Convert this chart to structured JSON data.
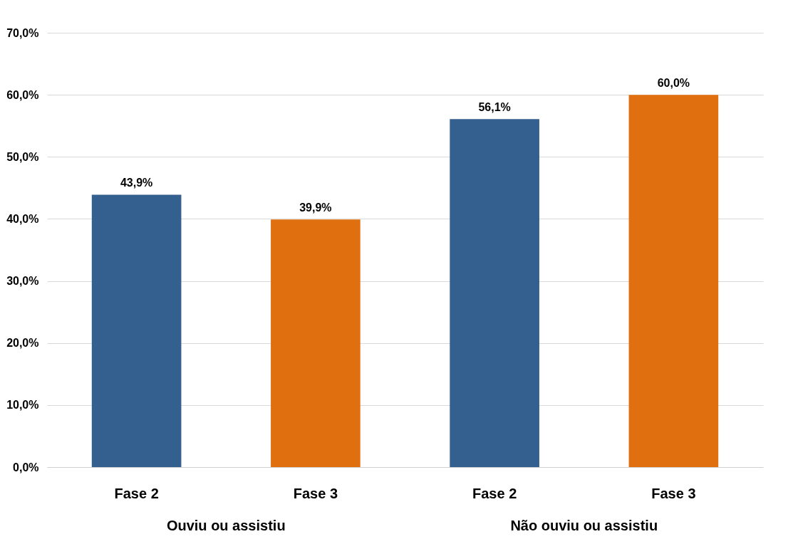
{
  "chart_data": {
    "type": "bar",
    "categories": [
      "Ouviu ou assistiu",
      "Não ouviu ou assistiu"
    ],
    "series": [
      {
        "name": "Fase 2",
        "color": "#34608f",
        "values": [
          43.9,
          56.1
        ],
        "value_labels": [
          "43,9%",
          "56,1%"
        ]
      },
      {
        "name": "Fase 3",
        "color": "#e0700f",
        "values": [
          39.9,
          60.0
        ],
        "value_labels": [
          "39,9%",
          "60,0%"
        ]
      }
    ],
    "ylim": [
      0,
      70
    ],
    "yticks": [
      {
        "value": 0,
        "label": "0,0%"
      },
      {
        "value": 10,
        "label": "10,0%"
      },
      {
        "value": 20,
        "label": "20,0%"
      },
      {
        "value": 30,
        "label": "30,0%"
      },
      {
        "value": 40,
        "label": "40,0%"
      },
      {
        "value": 50,
        "label": "50,0%"
      },
      {
        "value": 60,
        "label": "60,0%"
      },
      {
        "value": 70,
        "label": "70,0%"
      }
    ],
    "grid": "y",
    "legend": false
  }
}
